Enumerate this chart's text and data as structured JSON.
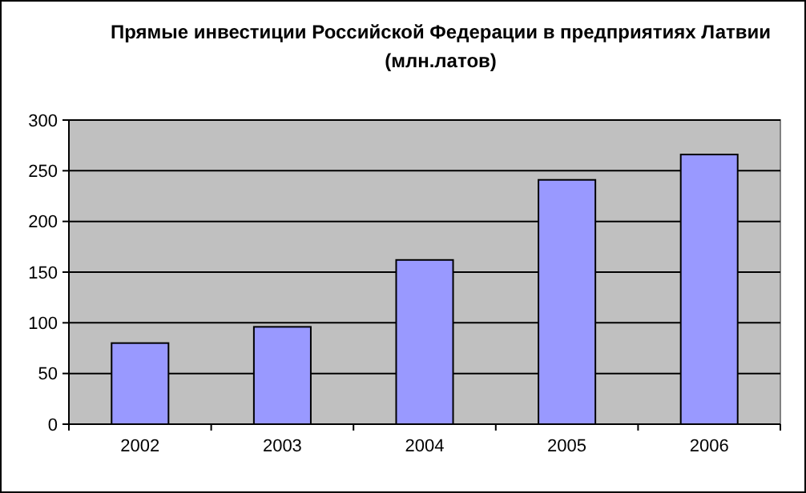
{
  "chart_data": {
    "type": "bar",
    "title": "Прямые инвестиции Российской Федерации в предприятиях Латвии (млн.латов)",
    "categories": [
      "2002",
      "2003",
      "2004",
      "2005",
      "2006"
    ],
    "values": [
      80,
      96,
      162,
      241,
      266
    ],
    "color": "#9999ff",
    "ylim": [
      0,
      300
    ],
    "yticks": [
      0,
      50,
      100,
      150,
      200,
      250,
      300
    ],
    "grid": "y"
  }
}
